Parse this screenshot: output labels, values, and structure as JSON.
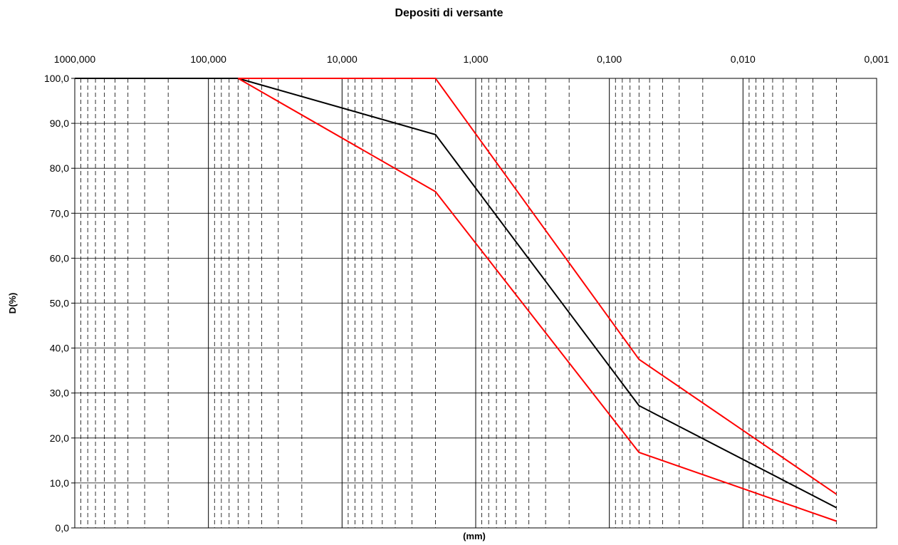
{
  "chart_data": {
    "type": "line",
    "title": "Depositi di versante",
    "xlabel": "(mm)",
    "ylabel": "D(%)",
    "x_scale": "log",
    "x_reversed": true,
    "xlim": [
      1000,
      0.001
    ],
    "ylim": [
      0,
      100
    ],
    "x_tick_values": [
      1000,
      100,
      10,
      1,
      0.1,
      0.01,
      0.001
    ],
    "x_tick_labels": [
      "1000,000",
      "100,000",
      "10,000",
      "1,000",
      "0,100",
      "0,010",
      "0,001"
    ],
    "y_tick_values": [
      0,
      10,
      20,
      30,
      40,
      50,
      60,
      70,
      80,
      90,
      100
    ],
    "y_tick_labels": [
      "0,0",
      "10,0",
      "20,0",
      "30,0",
      "40,0",
      "50,0",
      "60,0",
      "70,0",
      "80,0",
      "90,0",
      "100,0"
    ],
    "grid": true,
    "series": [
      {
        "color": "#000000",
        "points": [
          [
            1000,
            100
          ],
          [
            60,
            100
          ],
          [
            2,
            87.5
          ],
          [
            0.06,
            27.2
          ],
          [
            0.002,
            4.5
          ]
        ]
      },
      {
        "color": "#ff0000",
        "points": [
          [
            60,
            100
          ],
          [
            2,
            74.8
          ],
          [
            0.06,
            16.8
          ],
          [
            0.002,
            1.5
          ]
        ]
      },
      {
        "color": "#ff0000",
        "points": [
          [
            60,
            100
          ],
          [
            2,
            100
          ],
          [
            0.06,
            37.5
          ],
          [
            0.002,
            7.5
          ]
        ]
      }
    ]
  }
}
